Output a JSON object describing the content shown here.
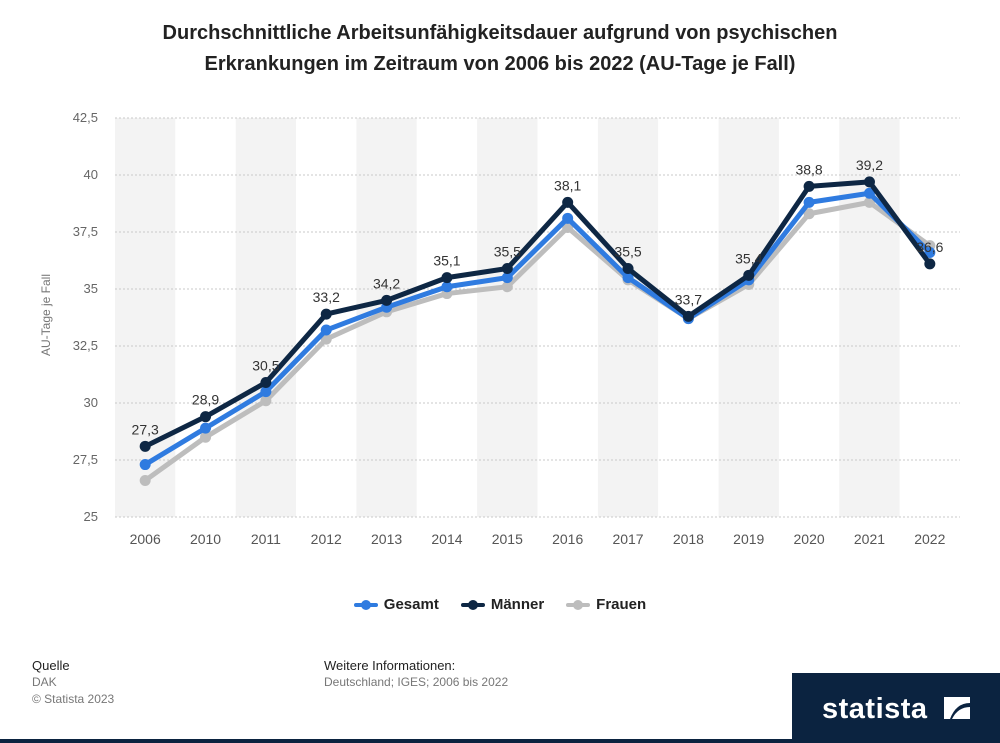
{
  "title": {
    "line1": "Durchschnittliche Arbeitsunfähigkeitsdauer aufgrund von psychischen",
    "line2": "Erkrankungen im Zeitraum von 2006 bis 2022 (AU-Tage je Fall)"
  },
  "chart_data": {
    "type": "line",
    "categories": [
      "2006",
      "2010",
      "2011",
      "2012",
      "2013",
      "2014",
      "2015",
      "2016",
      "2017",
      "2018",
      "2019",
      "2020",
      "2021",
      "2022"
    ],
    "series": [
      {
        "name": "Gesamt",
        "color": "#2f7be0",
        "values": [
          27.3,
          28.9,
          30.5,
          33.2,
          34.2,
          35.1,
          35.5,
          38.1,
          35.5,
          33.7,
          35.4,
          38.8,
          39.2,
          36.6
        ]
      },
      {
        "name": "Männer",
        "color": "#0e2744",
        "values": [
          28.1,
          29.4,
          30.9,
          33.9,
          34.5,
          35.5,
          35.9,
          38.8,
          35.9,
          33.8,
          35.6,
          39.5,
          39.7,
          36.1
        ]
      },
      {
        "name": "Frauen",
        "color": "#bdbdbd",
        "values": [
          26.6,
          28.5,
          30.1,
          32.8,
          34.0,
          34.8,
          35.1,
          37.7,
          35.4,
          33.7,
          35.2,
          38.3,
          38.8,
          36.9
        ]
      }
    ],
    "data_labels": [
      "27,3",
      "28,9",
      "30,5",
      "33,2",
      "34,2",
      "35,1",
      "35,5",
      "38,1",
      "35,5",
      "33,7",
      "35,4",
      "38,8",
      "39,2",
      "36,6"
    ],
    "y_ticks": [
      "25",
      "27,5",
      "30",
      "32,5",
      "35",
      "37,5",
      "40",
      "42,5"
    ],
    "ylim": [
      25,
      42.5
    ],
    "title": "Durchschnittliche Arbeitsunfähigkeitsdauer aufgrund von psychischen Erkrankungen im Zeitraum von 2006 bis 2022 (AU-Tage je Fall)",
    "xlabel": "",
    "ylabel": "AU-Tage je Fall",
    "legend_position": "bottom-center",
    "grid": true
  },
  "legend": [
    {
      "label": "Gesamt",
      "color": "#2f7be0"
    },
    {
      "label": "Männer",
      "color": "#0e2744"
    },
    {
      "label": "Frauen",
      "color": "#bdbdbd"
    }
  ],
  "footer": {
    "source_heading": "Quelle",
    "source": "DAK",
    "copyright": "© Statista 2023",
    "info_heading": "Weitere Informationen:",
    "info": "Deutschland; IGES; 2006 bis 2022"
  },
  "brand": {
    "name": "statista"
  }
}
